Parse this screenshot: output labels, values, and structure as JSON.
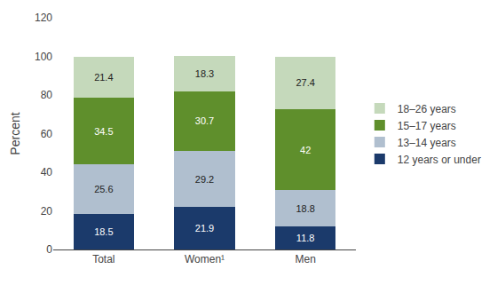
{
  "chart_data": {
    "type": "bar",
    "stacked": true,
    "categories": [
      "Total",
      "Women¹",
      "Men"
    ],
    "series": [
      {
        "name": "12 years or under",
        "color": "#1b3a6b",
        "values": [
          18.5,
          21.9,
          11.8
        ]
      },
      {
        "name": "13–14 years",
        "color": "#b0bfcf",
        "values": [
          25.6,
          29.2,
          18.8
        ]
      },
      {
        "name": "15–17 years",
        "color": "#5f8f2c",
        "values": [
          34.5,
          30.7,
          42.0
        ]
      },
      {
        "name": "18–26 years",
        "color": "#c5d9bb",
        "values": [
          21.4,
          18.3,
          27.4
        ]
      }
    ],
    "ylabel": "Percent",
    "ylim": [
      0,
      120
    ],
    "yticks": [
      0,
      20,
      40,
      60,
      80,
      100,
      120
    ],
    "grid": false,
    "legend": "right",
    "data_labels": true
  }
}
